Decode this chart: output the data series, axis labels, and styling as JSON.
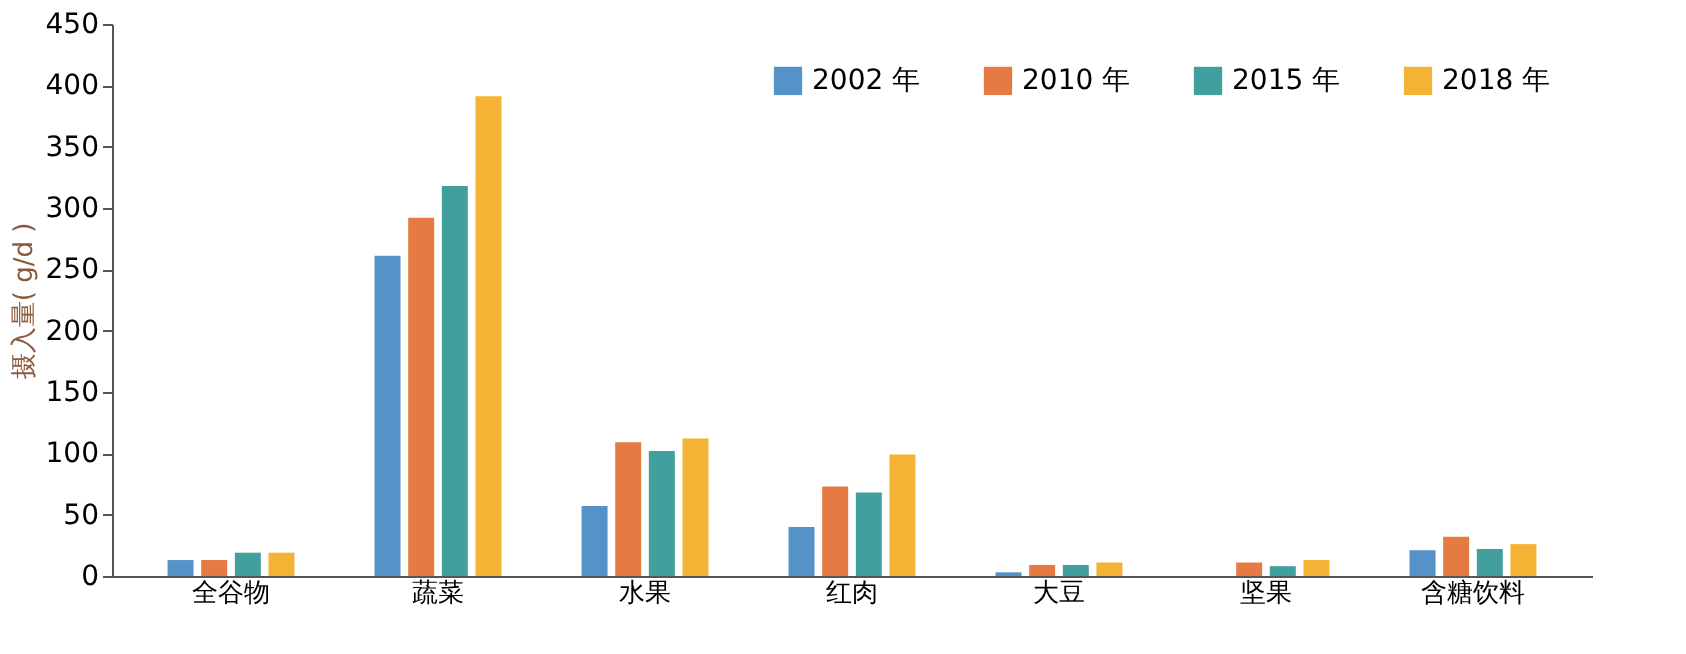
{
  "chart_data": {
    "type": "bar",
    "ylabel": "摄入量( g/d )",
    "categories": [
      "全谷物",
      "蔬菜",
      "水果",
      "红肉",
      "大豆",
      "坚果",
      "含糖饮料"
    ],
    "series": [
      {
        "name": "2002 年",
        "color": "#5592c8",
        "values": [
          13,
          261,
          57,
          40,
          3,
          null,
          21
        ]
      },
      {
        "name": "2010 年",
        "color": "#e57a43",
        "values": [
          13,
          292,
          109,
          73,
          9,
          11,
          32
        ]
      },
      {
        "name": "2015 年",
        "color": "#41a09e",
        "values": [
          19,
          318,
          102,
          68,
          9,
          8,
          22
        ]
      },
      {
        "name": "2018 年",
        "color": "#f4b334",
        "values": [
          19,
          391,
          112,
          99,
          11,
          13,
          26
        ]
      }
    ],
    "ylim": [
      0,
      450
    ],
    "yticks": [
      0,
      50,
      100,
      150,
      200,
      250,
      300,
      350,
      400,
      450
    ],
    "grid": false,
    "legend": "top right"
  }
}
